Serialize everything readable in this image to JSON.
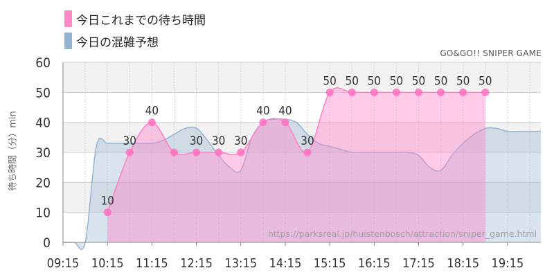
{
  "legend": {
    "actual_label": "今日これまでの待ち時間",
    "forecast_label": "今日の混雑予想",
    "actual_color": "#ff88c8",
    "forecast_color": "#93b3d2"
  },
  "site_title": "GO&GO!! SNIPER GAME",
  "source_url": "https://parksreal.jp/huistenbosch/attraction/sniper_game.html",
  "chart_data": {
    "type": "area",
    "ylabel": "待ち時間（分）min",
    "ylim": [
      0,
      60
    ],
    "yticks": [
      0,
      10,
      20,
      30,
      40,
      50,
      60
    ],
    "xlim": [
      "09:15",
      "20:00"
    ],
    "xticks": [
      "09:15",
      "10:15",
      "11:15",
      "12:15",
      "13:15",
      "14:15",
      "15:15",
      "16:15",
      "17:15",
      "18:15",
      "19:15"
    ],
    "grid": true,
    "series": [
      {
        "name": "今日これまでの待ち時間",
        "x": [
          "10:15",
          "10:45",
          "11:15",
          "11:45",
          "12:15",
          "12:45",
          "13:15",
          "13:45",
          "14:15",
          "14:45",
          "15:15",
          "15:45",
          "16:15",
          "16:45",
          "17:15",
          "17:45",
          "18:15",
          "18:45"
        ],
        "values": [
          10,
          30,
          40,
          30,
          30,
          30,
          30,
          40,
          40,
          30,
          50,
          50,
          50,
          50,
          50,
          50,
          50,
          50
        ],
        "labels": [
          "10",
          "30",
          "40",
          "",
          "30",
          "30",
          "30",
          "40",
          "40",
          "30",
          "50",
          "50",
          "50",
          "50",
          "50",
          "50",
          "50",
          "50"
        ]
      },
      {
        "name": "今日の混雑予想",
        "x": [
          "09:15",
          "09:30",
          "09:45",
          "10:00",
          "10:15",
          "10:30",
          "10:45",
          "11:00",
          "11:15",
          "11:30",
          "11:45",
          "12:00",
          "12:15",
          "12:30",
          "12:45",
          "13:00",
          "13:15",
          "13:30",
          "13:45",
          "14:00",
          "14:15",
          "14:30",
          "14:45",
          "15:00",
          "15:15",
          "15:30",
          "15:45",
          "16:00",
          "16:15",
          "16:30",
          "16:45",
          "17:00",
          "17:15",
          "17:30",
          "17:45",
          "18:00",
          "18:15",
          "18:30",
          "18:45",
          "19:00",
          "19:15",
          "19:30",
          "19:45",
          "20:00"
        ],
        "values": [
          0,
          0,
          0,
          32,
          33,
          33,
          33,
          33,
          33,
          34,
          36,
          38,
          38,
          34,
          29,
          25,
          24,
          35,
          40,
          41,
          41,
          40,
          36,
          33,
          32,
          31,
          30,
          30,
          30,
          30,
          30,
          30,
          29,
          25,
          24,
          29,
          33,
          36,
          38,
          38,
          37,
          37,
          37,
          37
        ]
      }
    ]
  }
}
